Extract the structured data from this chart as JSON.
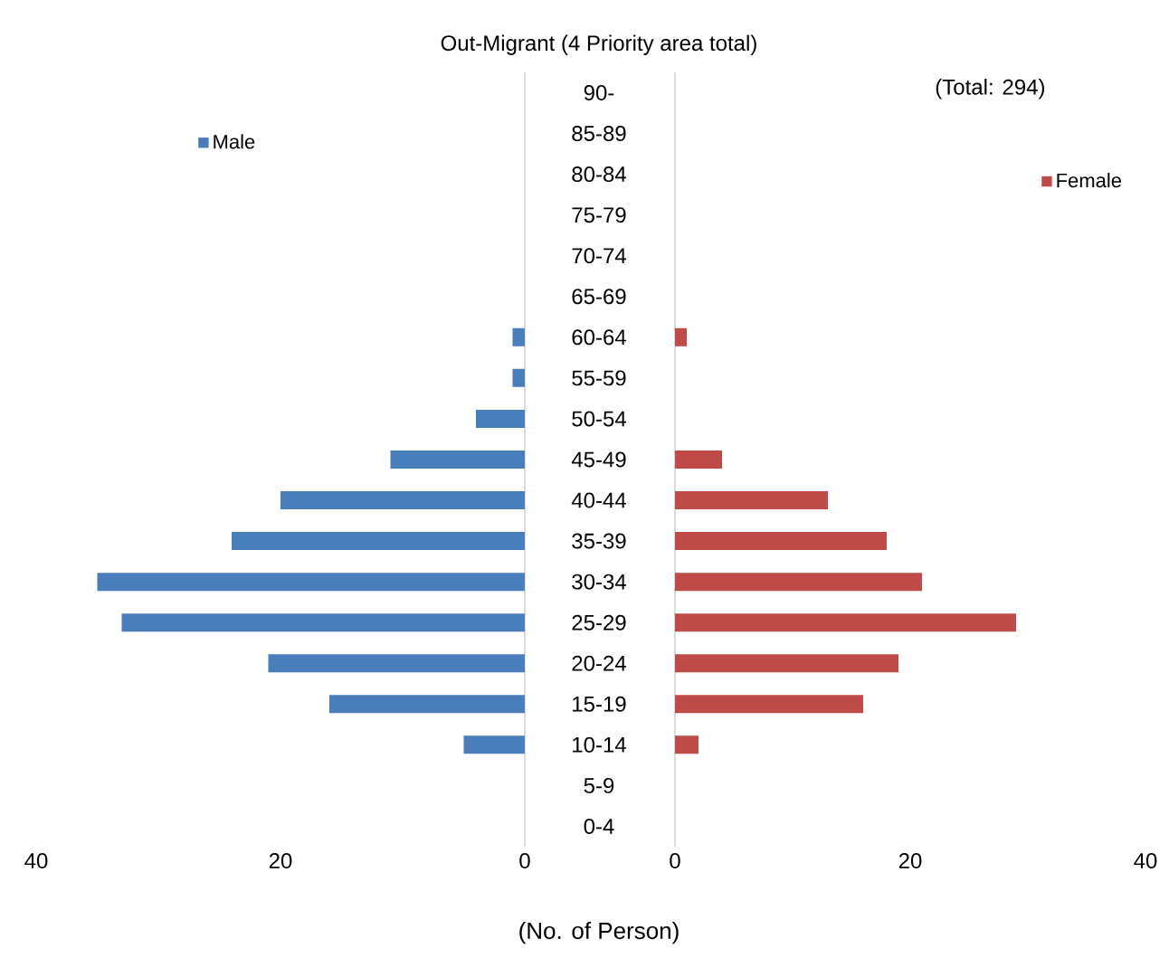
{
  "chart_data": [
    {
      "type": "bar",
      "orientation": "horizontal",
      "title": "Out-Migrant (4 Priority area total)",
      "xlabel": "(No. of Person)",
      "categories": [
        "90-",
        "85-89",
        "80-84",
        "75-79",
        "70-74",
        "65-69",
        "60-64",
        "55-59",
        "50-54",
        "45-49",
        "40-44",
        "35-39",
        "30-34",
        "25-29",
        "20-24",
        "15-19",
        "10-14",
        "5-9",
        "0-4"
      ],
      "series": [
        {
          "name": "Male",
          "color": "#4a7ebb",
          "values": [
            0,
            0,
            0,
            0,
            0,
            0,
            1,
            1,
            4,
            11,
            20,
            24,
            35,
            33,
            21,
            16,
            5,
            0,
            0
          ]
        }
      ],
      "xlim": [
        40,
        0
      ],
      "xticks": [
        40,
        20,
        0
      ],
      "legend": "top left"
    },
    {
      "type": "bar",
      "orientation": "horizontal",
      "annotations": [
        "(Total: 294)"
      ],
      "categories": [
        null,
        null,
        null,
        null,
        null,
        null,
        null,
        null,
        null,
        null,
        null,
        null,
        null,
        null,
        null,
        null,
        null,
        null,
        null
      ],
      "series": [
        {
          "name": "Female",
          "color": "#be4b48",
          "values": [
            0,
            0,
            0,
            0,
            0,
            0,
            1,
            0,
            0,
            4,
            13,
            18,
            21,
            29,
            19,
            16,
            2,
            0,
            0
          ]
        }
      ],
      "xlim": [
        0,
        40
      ],
      "xticks": [
        0,
        20,
        40
      ],
      "legend": "top right",
      "tick_labels": "x"
    }
  ]
}
